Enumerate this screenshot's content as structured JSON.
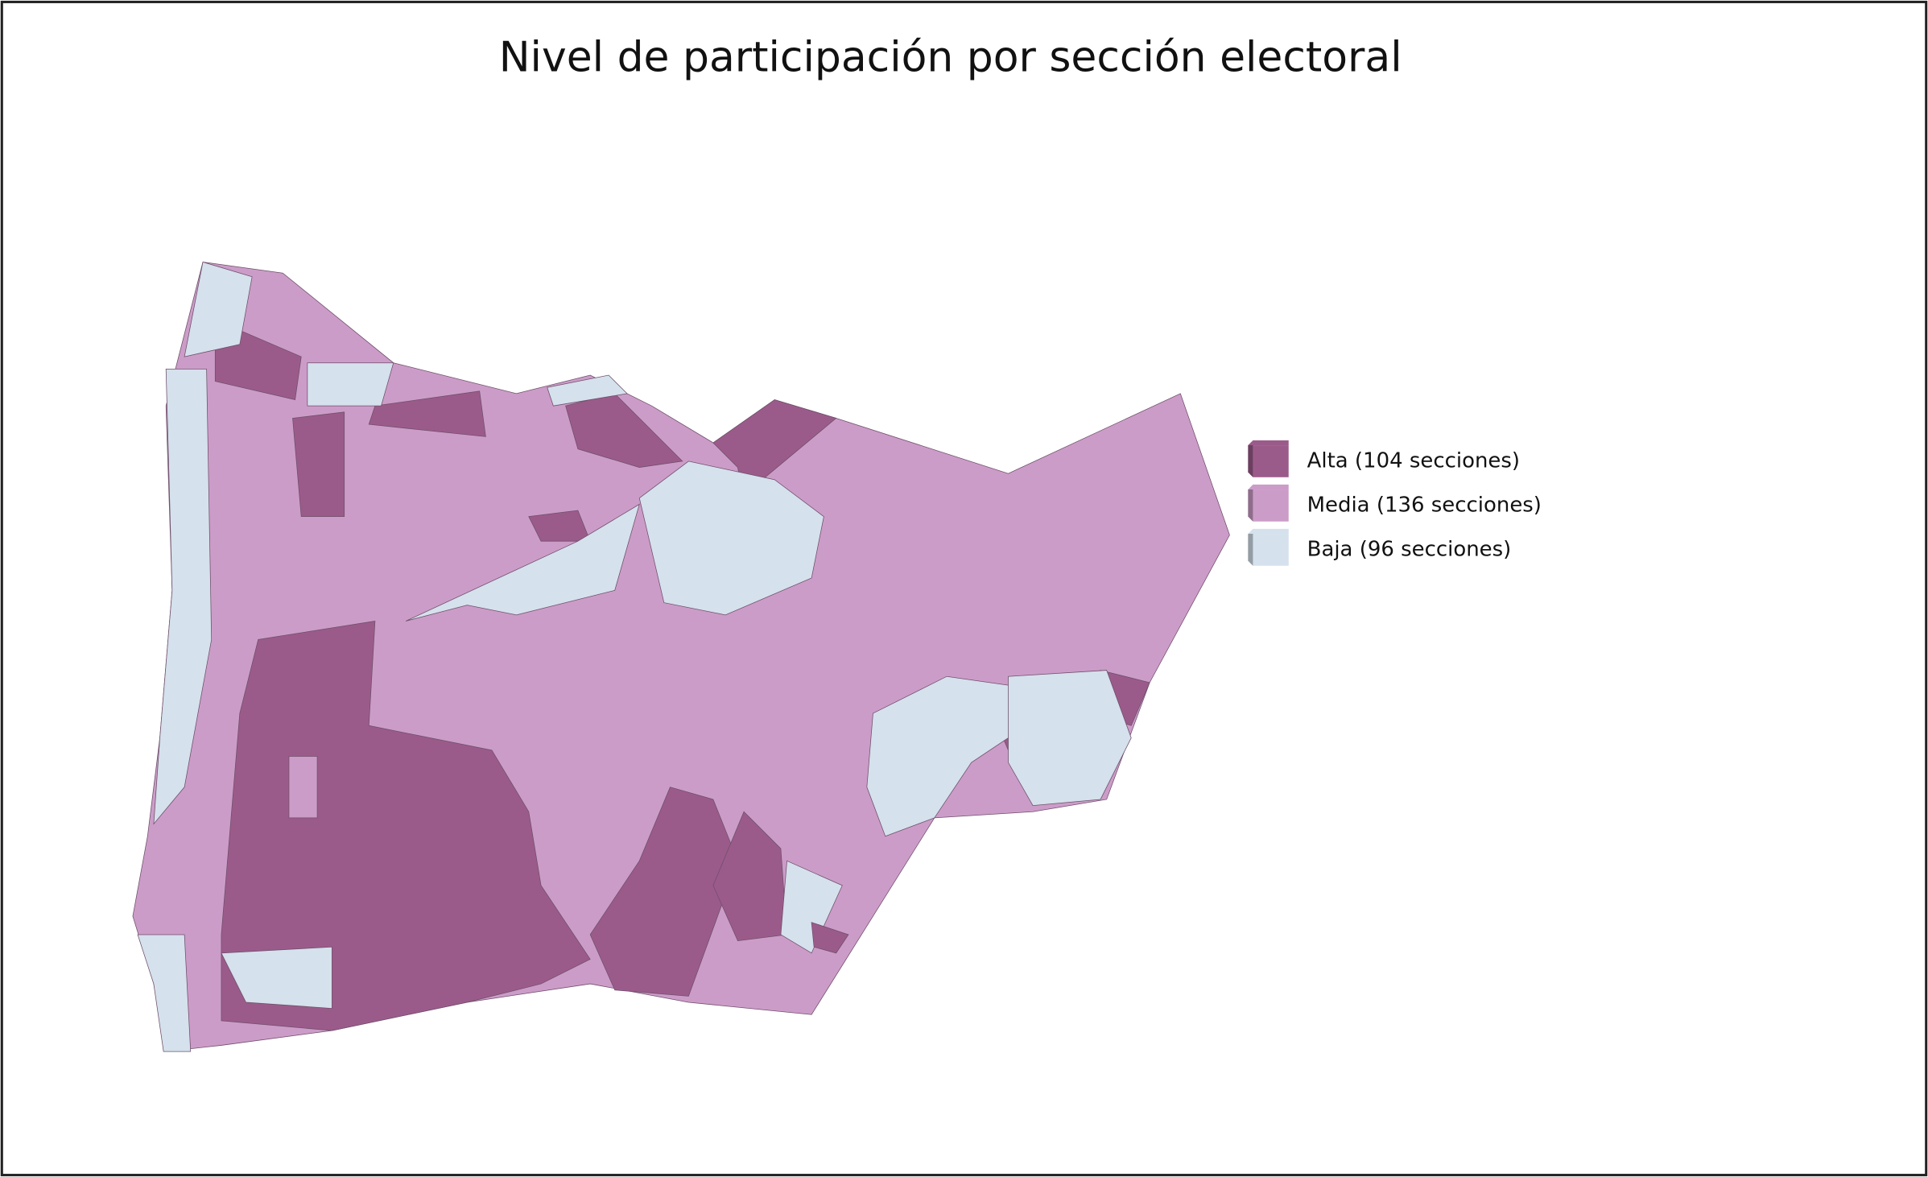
{
  "header": {
    "title": "Nivel de participación por sección electoral"
  },
  "legend": {
    "items": [
      {
        "label": "Alta (104 secciones)",
        "color": "#9b5b8a"
      },
      {
        "label": "Media (136 secciones)",
        "color": "#cc9cc8"
      },
      {
        "label": "Baja (96 secciones)",
        "color": "#d5e1ec"
      }
    ]
  }
}
